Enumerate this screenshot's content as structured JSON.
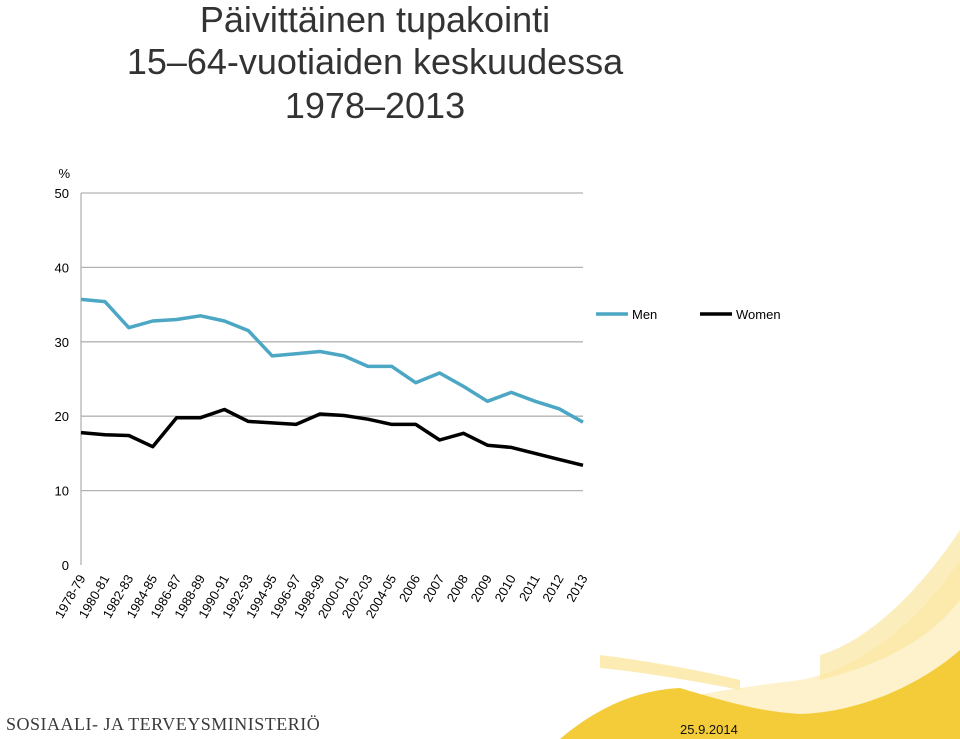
{
  "title_lines": [
    "Päivittäinen tupakointi",
    "15–64-vuotiaiden keskuudessa",
    "1978–2013"
  ],
  "chart_data": {
    "type": "line",
    "ylabel": "%",
    "ylim": [
      0,
      50
    ],
    "yticks": [
      0,
      10,
      20,
      30,
      40,
      50
    ],
    "grid": true,
    "legend_position": "right",
    "categories": [
      "1978-79",
      "1980-81",
      "1982-83",
      "1984-85",
      "1986-87",
      "1988-89",
      "1990-91",
      "1992-93",
      "1994-95",
      "1996-97",
      "1998-99",
      "2000-01",
      "2002-03",
      "2004-05",
      "2006",
      "2007",
      "2008",
      "2009",
      "2010",
      "2011",
      "2012",
      "2013"
    ],
    "series": [
      {
        "name": "Men",
        "color": "#4ba7c4",
        "values": [
          35.7,
          35.4,
          31.9,
          32.8,
          33.0,
          33.5,
          32.8,
          31.5,
          28.1,
          28.4,
          28.7,
          28.1,
          26.7,
          26.7,
          24.5,
          25.8,
          24.0,
          22.0,
          23.2,
          22.0,
          21.0,
          19.2
        ]
      },
      {
        "name": "Women",
        "color": "#000000",
        "values": [
          17.8,
          17.5,
          17.4,
          15.9,
          19.8,
          19.8,
          20.9,
          19.3,
          19.1,
          18.9,
          20.3,
          20.1,
          19.6,
          18.9,
          18.9,
          16.8,
          17.7,
          16.1,
          15.8,
          15.0,
          14.2,
          13.4
        ]
      }
    ]
  },
  "footer": {
    "organization": "SOSIAALI- JA TERVEYSMINISTERIÖ",
    "date": "25.9.2014",
    "accent_color": "#f2d24b"
  }
}
